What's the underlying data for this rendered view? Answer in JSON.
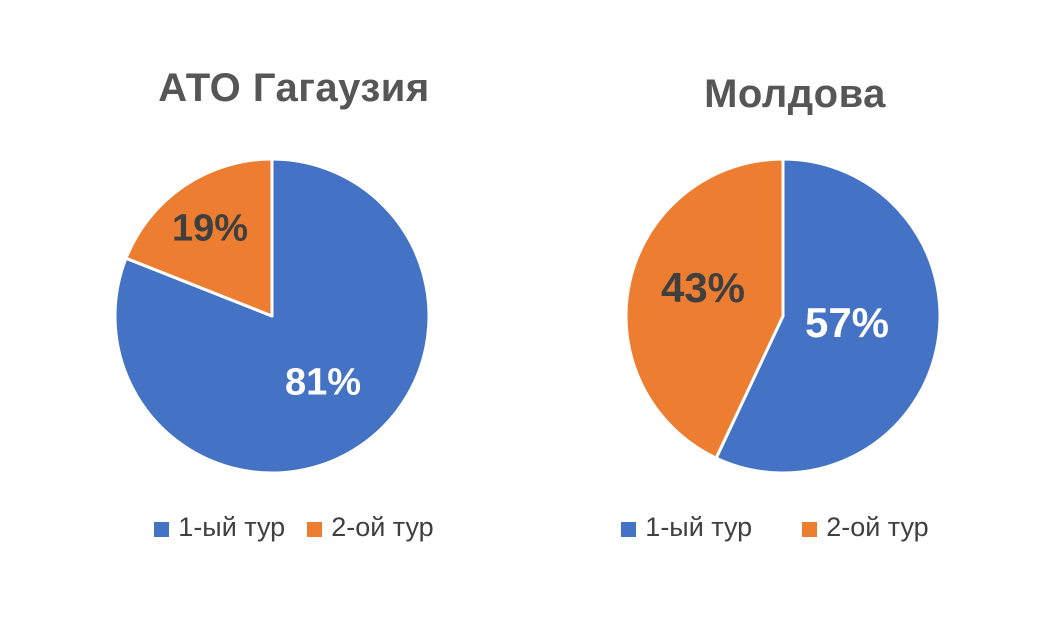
{
  "chart_data": [
    {
      "type": "pie",
      "title": "АТО Гагаузия",
      "categories": [
        "1-ый тур",
        "2-ой тур"
      ],
      "values": [
        81,
        19
      ],
      "unit": "%",
      "slice_labels": [
        "81%",
        "19%"
      ],
      "colors": [
        "#4472C4",
        "#ED7D31"
      ],
      "slice_label_colors": [
        "#FFFFFF",
        "#3F3F3F"
      ],
      "start_angle_deg": 0,
      "direction": "clockwise",
      "legend_position": "bottom"
    },
    {
      "type": "pie",
      "title": "Молдова",
      "categories": [
        "1-ый тур",
        "2-ой тур"
      ],
      "values": [
        57,
        43
      ],
      "unit": "%",
      "slice_labels": [
        "57%",
        "43%"
      ],
      "colors": [
        "#4472C4",
        "#ED7D31"
      ],
      "slice_label_colors": [
        "#FFFFFF",
        "#3F3F3F"
      ],
      "start_angle_deg": 0,
      "direction": "clockwise",
      "legend_position": "bottom"
    }
  ],
  "style": {
    "title_color": "#565656",
    "legend_text_color": "#404040",
    "background": "#FFFFFF",
    "slice_border_color": "#FFFFFF"
  }
}
